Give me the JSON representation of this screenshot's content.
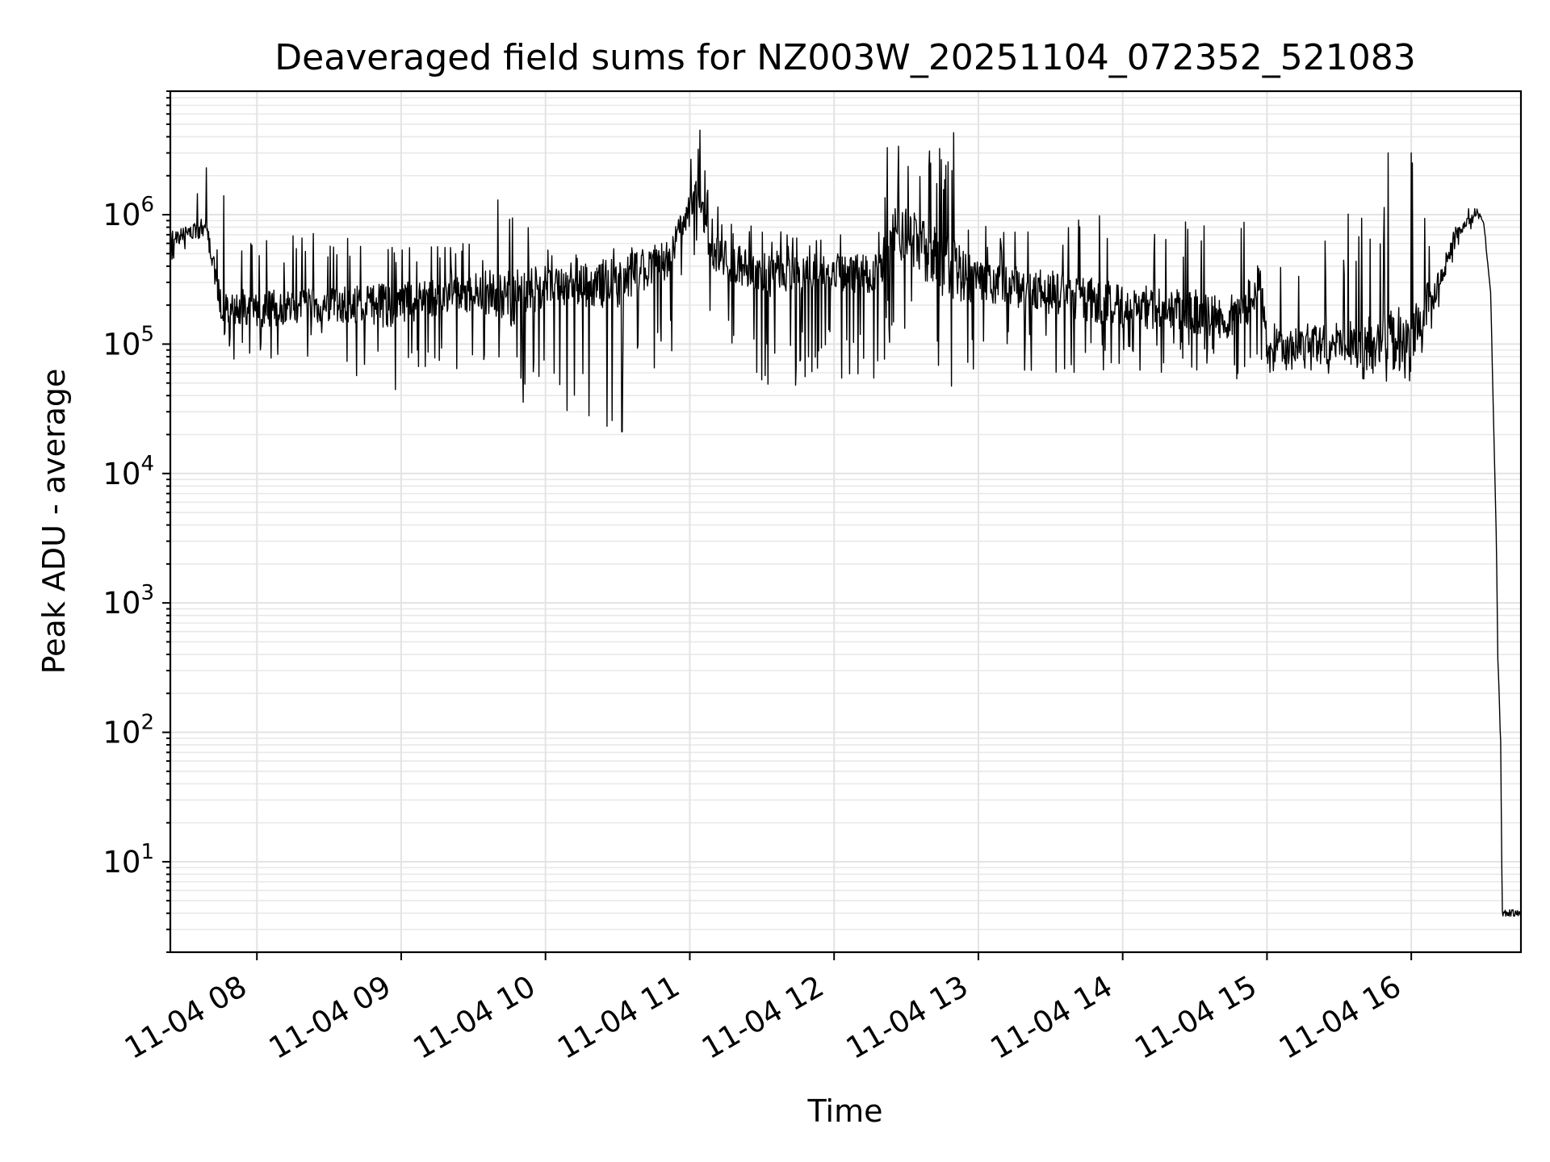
{
  "chart_data": {
    "type": "line",
    "title": "Deaveraged field sums for NZ003W_20251104_072352_521083",
    "xlabel": "Time",
    "ylabel": "Peak ADU - average",
    "yscale": "log",
    "ylim": [
      2,
      9000000
    ],
    "xlim_hours": [
      7.4,
      16.76
    ],
    "grid": "major+minor",
    "x_tick_labels": [
      {
        "hour": 8,
        "label": "11-04 08"
      },
      {
        "hour": 9,
        "label": "11-04 09"
      },
      {
        "hour": 10,
        "label": "11-04 10"
      },
      {
        "hour": 11,
        "label": "11-04 11"
      },
      {
        "hour": 12,
        "label": "11-04 12"
      },
      {
        "hour": 13,
        "label": "11-04 13"
      },
      {
        "hour": 14,
        "label": "11-04 14"
      },
      {
        "hour": 15,
        "label": "11-04 15"
      },
      {
        "hour": 16,
        "label": "11-04 16"
      }
    ],
    "y_tick_labels": [
      {
        "value": 10,
        "base": "10",
        "exp": "1"
      },
      {
        "value": 100,
        "base": "10",
        "exp": "2"
      },
      {
        "value": 1000,
        "base": "10",
        "exp": "3"
      },
      {
        "value": 10000,
        "base": "10",
        "exp": "4"
      },
      {
        "value": 100000,
        "base": "10",
        "exp": "5"
      },
      {
        "value": 1000000,
        "base": "10",
        "exp": "6"
      }
    ],
    "series": [
      {
        "name": "Peak ADU - average",
        "color": "#000000",
        "envelope": [
          {
            "hour": 7.4,
            "median": 650000,
            "low": 400000,
            "high": 950000
          },
          {
            "hour": 7.65,
            "median": 800000,
            "low": 600000,
            "high": 2200000
          },
          {
            "hour": 7.75,
            "median": 200000,
            "low": 80000,
            "high": 600000
          },
          {
            "hour": 8.0,
            "median": 190000,
            "low": 70000,
            "high": 800000
          },
          {
            "hour": 8.5,
            "median": 200000,
            "low": 80000,
            "high": 700000
          },
          {
            "hour": 8.9,
            "median": 200000,
            "low": 35000,
            "high": 600000
          },
          {
            "hour": 9.5,
            "median": 250000,
            "low": 45000,
            "high": 600000
          },
          {
            "hour": 9.75,
            "median": 230000,
            "low": 27000,
            "high": 1200000
          },
          {
            "hour": 10.0,
            "median": 280000,
            "low": 35000,
            "high": 550000
          },
          {
            "hour": 10.5,
            "median": 300000,
            "low": 21000,
            "high": 550000
          },
          {
            "hour": 10.85,
            "median": 450000,
            "low": 60000,
            "high": 650000
          },
          {
            "hour": 11.05,
            "median": 1500000,
            "low": 500000,
            "high": 4500000
          },
          {
            "hour": 11.15,
            "median": 500000,
            "low": 140000,
            "high": 1300000
          },
          {
            "hour": 11.5,
            "median": 350000,
            "low": 40000,
            "high": 800000
          },
          {
            "hour": 12.0,
            "median": 350000,
            "low": 55000,
            "high": 750000
          },
          {
            "hour": 12.3,
            "median": 350000,
            "low": 35000,
            "high": 700000
          },
          {
            "hour": 12.4,
            "median": 800000,
            "low": 120000,
            "high": 3300000
          },
          {
            "hour": 12.8,
            "median": 400000,
            "low": 45000,
            "high": 4200000
          },
          {
            "hour": 13.0,
            "median": 300000,
            "low": 60000,
            "high": 800000
          },
          {
            "hour": 13.5,
            "median": 250000,
            "low": 60000,
            "high": 1000000
          },
          {
            "hour": 14.0,
            "median": 200000,
            "low": 60000,
            "high": 1000000
          },
          {
            "hour": 14.5,
            "median": 180000,
            "low": 60000,
            "high": 1000000
          },
          {
            "hour": 14.8,
            "median": 160000,
            "low": 50000,
            "high": 1000000
          },
          {
            "hour": 14.95,
            "median": 300000,
            "low": 70000,
            "high": 1000000
          },
          {
            "hour": 15.0,
            "median": 100000,
            "low": 60000,
            "high": 800000
          },
          {
            "hour": 15.5,
            "median": 100000,
            "low": 55000,
            "high": 800000
          },
          {
            "hour": 15.85,
            "median": 100000,
            "low": 50000,
            "high": 3000000
          },
          {
            "hour": 16.0,
            "median": 130000,
            "low": 45000,
            "high": 3000000
          },
          {
            "hour": 16.2,
            "median": 300000,
            "low": 150000,
            "high": 700000
          },
          {
            "hour": 16.3,
            "median": 700000,
            "low": 500000,
            "high": 1400000
          },
          {
            "hour": 16.46,
            "median": 1050000,
            "low": 900000,
            "high": 1100000
          },
          {
            "hour": 16.5,
            "median": 900000,
            "low": 800000,
            "high": 1000000
          },
          {
            "hour": 16.55,
            "median": 250000,
            "low": 250000,
            "high": 250000
          },
          {
            "hour": 16.59,
            "median": 3000,
            "low": 3000,
            "high": 3000
          },
          {
            "hour": 16.6,
            "median": 380,
            "low": 170,
            "high": 420
          },
          {
            "hour": 16.62,
            "median": 80,
            "low": 30,
            "high": 120
          },
          {
            "hour": 16.63,
            "median": 4,
            "low": 3.8,
            "high": 4.5
          },
          {
            "hour": 16.76,
            "median": 4,
            "low": 3.8,
            "high": 4.5
          }
        ],
        "notable_spikes": [
          {
            "hour": 7.65,
            "value": 2300000
          },
          {
            "hour": 7.77,
            "value": 1400000
          },
          {
            "hour": 9.67,
            "value": 1300000
          },
          {
            "hour": 10.53,
            "value": 21000
          },
          {
            "hour": 11.07,
            "value": 4500000
          },
          {
            "hour": 12.37,
            "value": 3300000
          },
          {
            "hour": 12.67,
            "value": 2500000
          },
          {
            "hour": 12.83,
            "value": 4300000
          },
          {
            "hour": 15.84,
            "value": 3000000
          },
          {
            "hour": 16.0,
            "value": 3000000
          }
        ]
      }
    ]
  }
}
